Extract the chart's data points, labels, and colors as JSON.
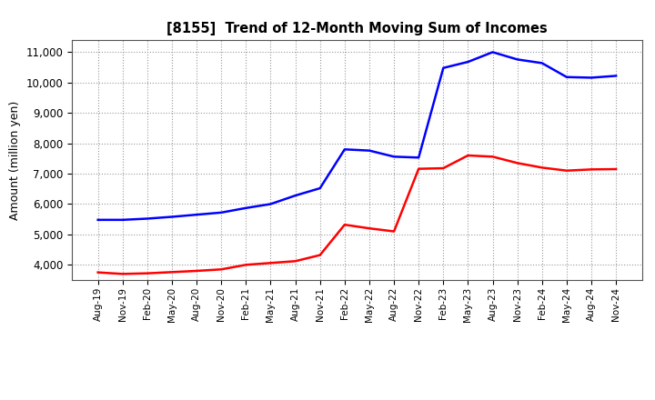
{
  "title": "[8155]  Trend of 12-Month Moving Sum of Incomes",
  "ylabel": "Amount (million yen)",
  "background_color": "#ffffff",
  "plot_bg_color": "#ffffff",
  "grid_color": "#999999",
  "ordinary_income_color": "#0000ff",
  "net_income_color": "#ff0000",
  "line_width": 1.8,
  "ylim": [
    3500,
    11400
  ],
  "yticks": [
    4000,
    5000,
    6000,
    7000,
    8000,
    9000,
    10000,
    11000
  ],
  "x_labels": [
    "Aug-19",
    "Nov-19",
    "Feb-20",
    "May-20",
    "Aug-20",
    "Nov-20",
    "Feb-21",
    "May-21",
    "Aug-21",
    "Nov-21",
    "Feb-22",
    "May-22",
    "Aug-22",
    "Nov-22",
    "Feb-23",
    "May-23",
    "Aug-23",
    "Nov-23",
    "Feb-24",
    "May-24",
    "Aug-24",
    "Nov-24"
  ],
  "ordinary_income": [
    5480,
    5480,
    5520,
    5580,
    5650,
    5720,
    5870,
    6000,
    6280,
    6520,
    7800,
    7760,
    7560,
    7530,
    10480,
    10680,
    11000,
    10760,
    10640,
    10180,
    10160,
    10220
  ],
  "net_income": [
    3750,
    3700,
    3720,
    3760,
    3800,
    3850,
    4000,
    4060,
    4120,
    4320,
    5320,
    5200,
    5100,
    7160,
    7180,
    7600,
    7560,
    7350,
    7200,
    7100,
    7140,
    7150
  ]
}
